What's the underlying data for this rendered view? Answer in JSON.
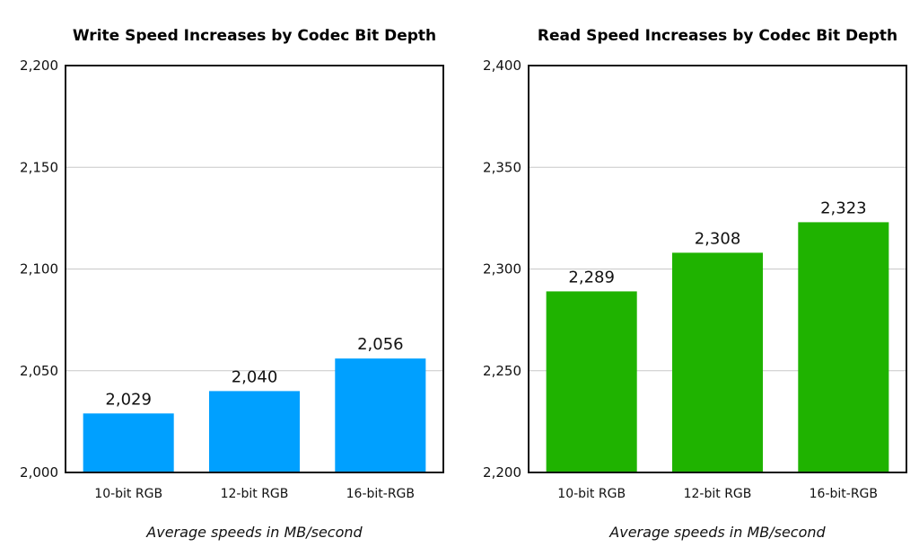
{
  "chart_data": [
    {
      "type": "bar",
      "title": "Write Speed Increases by Codec Bit Depth",
      "categories": [
        "10-bit RGB",
        "12-bit RGB",
        "16-bit-RGB"
      ],
      "values": [
        2029,
        2040,
        2056
      ],
      "data_labels": [
        "2,029",
        "2,040",
        "2,056"
      ],
      "ylim": [
        2000,
        2200
      ],
      "yticks": [
        "2,000",
        "2,050",
        "2,100",
        "2,150",
        "2,200"
      ],
      "ytick_values": [
        2000,
        2050,
        2100,
        2150,
        2200
      ],
      "xlabel": "Average speeds in MB/second",
      "color": "#00a0ff",
      "grid": true
    },
    {
      "type": "bar",
      "title": "Read Speed Increases by Codec Bit Depth",
      "categories": [
        "10-bit RGB",
        "12-bit RGB",
        "16-bit-RGB"
      ],
      "values": [
        2289,
        2308,
        2323
      ],
      "data_labels": [
        "2,289",
        "2,308",
        "2,323"
      ],
      "ylim": [
        2200,
        2400
      ],
      "yticks": [
        "2,200",
        "2,250",
        "2,300",
        "2,350",
        "2,400"
      ],
      "ytick_values": [
        2200,
        2250,
        2300,
        2350,
        2400
      ],
      "xlabel": "Average speeds in MB/second",
      "color": "#1fb300",
      "grid": true
    }
  ]
}
